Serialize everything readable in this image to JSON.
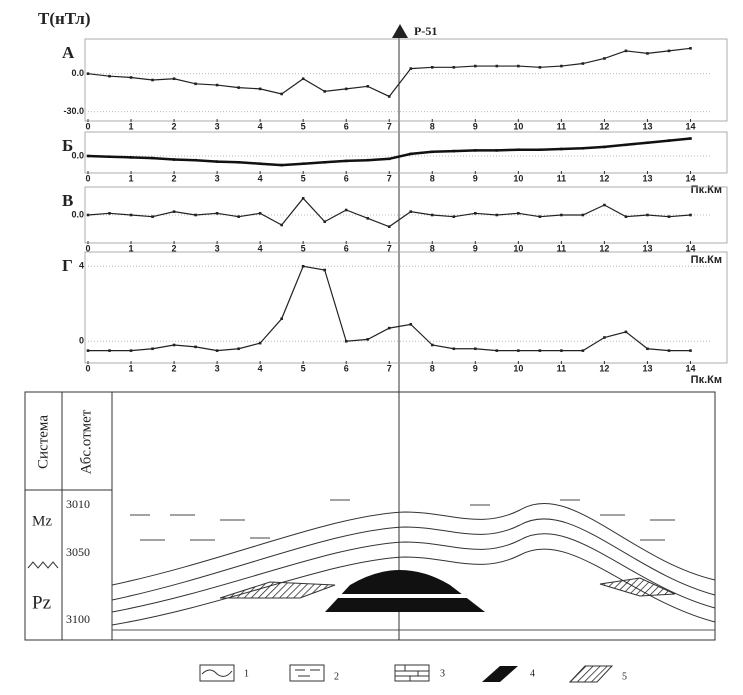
{
  "unit_label": "T(нТл)",
  "marker": {
    "label": "Р-51"
  },
  "chart_data": [
    {
      "type": "line",
      "label": "А",
      "x_label": null,
      "x": [
        0,
        0.5,
        1,
        1.5,
        2,
        2.5,
        3,
        3.5,
        4,
        4.5,
        5,
        5.5,
        6,
        6.5,
        7,
        7.5,
        8,
        8.5,
        9,
        9.5,
        10,
        10.5,
        11,
        11.5,
        12,
        12.5,
        13,
        13.5,
        14
      ],
      "series": [
        {
          "color": "#222",
          "values": [
            0,
            -2,
            -3,
            -5,
            -4,
            -8,
            -9,
            -11,
            -12,
            -16,
            -4,
            -14,
            -12,
            -10,
            -18,
            4,
            5,
            5,
            6,
            6,
            6,
            5,
            6,
            8,
            12,
            18,
            16,
            18,
            20
          ]
        }
      ],
      "xlim": [
        0,
        14.5
      ],
      "xticks": [
        0,
        1,
        2,
        3,
        4,
        5,
        6,
        7,
        8,
        9,
        10,
        11,
        12,
        13,
        14
      ],
      "ylim": [
        -35,
        25
      ],
      "yticks": [
        {
          "value": 0,
          "label": "0.0"
        },
        {
          "value": -30,
          "label": "-30.0"
        }
      ]
    },
    {
      "type": "line",
      "label": "Б",
      "x_label": "Пк.Км",
      "x": [
        0,
        0.5,
        1,
        1.5,
        2,
        2.5,
        3,
        3.5,
        4,
        4.5,
        5,
        5.5,
        6,
        6.5,
        7,
        7.5,
        8,
        8.5,
        9,
        9.5,
        10,
        10.5,
        11,
        11.5,
        12,
        12.5,
        13,
        13.5,
        14
      ],
      "series": [
        {
          "color": "#111",
          "values": [
            0,
            -1,
            -2,
            -3,
            -5,
            -6,
            -8,
            -9,
            -11,
            -13,
            -11,
            -9,
            -7,
            -6,
            -4,
            3,
            6,
            7,
            8,
            8,
            9,
            9,
            10,
            11,
            13,
            16,
            19,
            22,
            25
          ]
        }
      ],
      "xlim": [
        0,
        14.5
      ],
      "xticks": [
        0,
        1,
        2,
        3,
        4,
        5,
        6,
        7,
        8,
        9,
        10,
        11,
        12,
        13,
        14
      ],
      "ylim": [
        -20,
        30
      ],
      "yticks": [
        {
          "value": 0,
          "label": "0.0"
        }
      ]
    },
    {
      "type": "line",
      "label": "В",
      "x_label": "Пк.Км",
      "x": [
        0,
        0.5,
        1,
        1.5,
        2,
        2.5,
        3,
        3.5,
        4,
        4.5,
        5,
        5.5,
        6,
        6.5,
        7,
        7.5,
        8,
        8.5,
        9,
        9.5,
        10,
        10.5,
        11,
        11.5,
        12,
        12.5,
        13,
        13.5,
        14
      ],
      "series": [
        {
          "color": "#222",
          "values": [
            0,
            1,
            0,
            -1,
            2,
            0,
            1,
            -1,
            1,
            -6,
            10,
            -4,
            3,
            -2,
            -7,
            2,
            0,
            -1,
            1,
            0,
            1,
            -1,
            0,
            0,
            6,
            -1,
            0,
            -1,
            0
          ]
        }
      ],
      "xlim": [
        0,
        14.5
      ],
      "xticks": [
        0,
        1,
        2,
        3,
        4,
        5,
        6,
        7,
        8,
        9,
        10,
        11,
        12,
        13,
        14
      ],
      "ylim": [
        -15,
        15
      ],
      "yticks": [
        {
          "value": 0,
          "label": "0.0"
        }
      ]
    },
    {
      "type": "line",
      "label": "Г",
      "x_label": "Пк.Км",
      "x": [
        0,
        0.5,
        1,
        1.5,
        2,
        2.5,
        3,
        3.5,
        4,
        4.5,
        5,
        5.5,
        6,
        6.5,
        7,
        7.5,
        8,
        8.5,
        9,
        9.5,
        10,
        10.5,
        11,
        11.5,
        12,
        12.5,
        13,
        13.5,
        14
      ],
      "series": [
        {
          "color": "#222",
          "values": [
            -0.5,
            -0.5,
            -0.5,
            -0.4,
            -0.2,
            -0.3,
            -0.5,
            -0.4,
            -0.1,
            1.2,
            4,
            3.8,
            0,
            0.1,
            0.7,
            0.9,
            -0.2,
            -0.4,
            -0.4,
            -0.5,
            -0.5,
            -0.5,
            -0.5,
            -0.5,
            0.2,
            0.5,
            -0.4,
            -0.5,
            -0.5
          ]
        }
      ],
      "xlim": [
        0,
        14.5
      ],
      "xticks": [
        0,
        1,
        2,
        3,
        4,
        5,
        6,
        7,
        8,
        9,
        10,
        11,
        12,
        13,
        14
      ],
      "ylim": [
        -1,
        4.6
      ],
      "yticks": [
        0,
        4
      ]
    }
  ],
  "section": {
    "column_headers": [
      "Система",
      "Абс.отмет"
    ],
    "systems": [
      "Mz",
      "Pz"
    ],
    "depths": [
      "3010",
      "3050",
      "3100"
    ]
  },
  "legend": [
    "1",
    "2",
    "3",
    "4",
    "5"
  ]
}
